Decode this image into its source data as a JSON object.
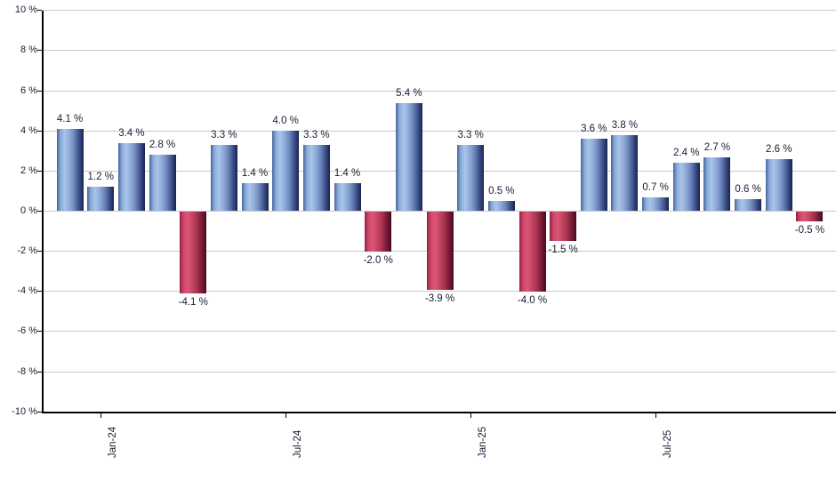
{
  "chart_data": {
    "type": "bar",
    "title": "",
    "xlabel": "",
    "ylabel": "",
    "values": [
      4.1,
      1.2,
      3.4,
      2.8,
      -4.1,
      3.3,
      1.4,
      4.0,
      3.3,
      1.4,
      -2.0,
      5.4,
      -3.9,
      3.3,
      0.5,
      -4.0,
      -1.5,
      3.6,
      3.8,
      0.7,
      2.4,
      2.7,
      0.6,
      2.6,
      -0.5
    ],
    "bar_labels": [
      "4.1 %",
      "1.2 %",
      "3.4 %",
      "2.8 %",
      "-4.1 %",
      "3.3 %",
      "1.4 %",
      "4.0 %",
      "3.3 %",
      "1.4 %",
      "-2.0 %",
      "5.4 %",
      "-3.9 %",
      "3.3 %",
      "0.5 %",
      "-4.0 %",
      "-1.5 %",
      "3.6 %",
      "3.8 %",
      "0.7 %",
      "2.4 %",
      "2.7 %",
      "0.6 %",
      "2.6 %",
      "-0.5 %"
    ],
    "x_ticks": [
      {
        "label": "Jan-24",
        "bar_index": 1
      },
      {
        "label": "Jul-24",
        "bar_index": 7
      },
      {
        "label": "Jan-25",
        "bar_index": 13
      },
      {
        "label": "Jul-25",
        "bar_index": 19
      }
    ],
    "y_ticks": [
      {
        "value": 10,
        "label": "10 %"
      },
      {
        "value": 8,
        "label": "8 %"
      },
      {
        "value": 6,
        "label": "6 %"
      },
      {
        "value": 4,
        "label": "4 %"
      },
      {
        "value": 2,
        "label": "2 %"
      },
      {
        "value": 0,
        "label": "0 %"
      },
      {
        "value": -2,
        "label": "-2 %"
      },
      {
        "value": -4,
        "label": "-4 %"
      },
      {
        "value": -6,
        "label": "-6 %"
      },
      {
        "value": -8,
        "label": "-8 %"
      },
      {
        "value": -10,
        "label": "-10 %"
      }
    ],
    "ylim": [
      -10,
      10
    ],
    "grid": true,
    "legend": null,
    "colors": {
      "positive_bar": "#7a9bd0",
      "negative_bar": "#c04062",
      "gridline": "#c9c9c9",
      "axis": "#000000",
      "text": "#1b1b35",
      "background": "#ffffff"
    }
  }
}
